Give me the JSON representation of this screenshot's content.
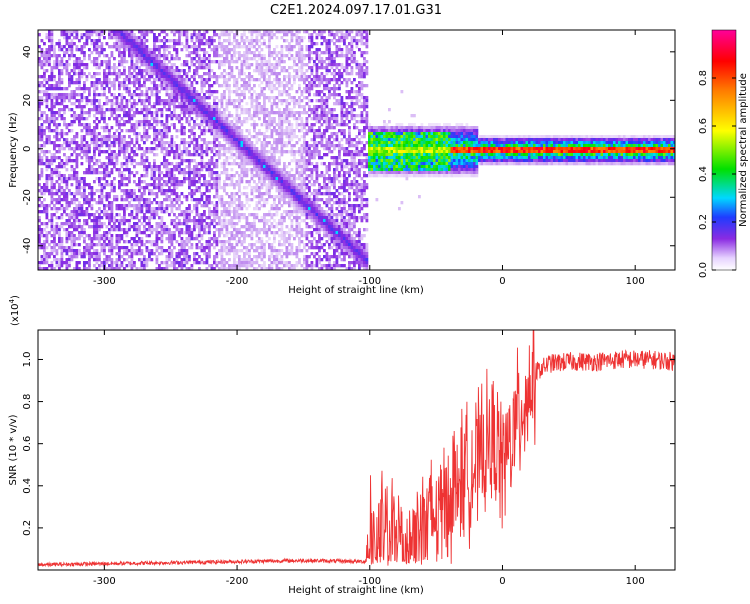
{
  "figure": {
    "title": "C2E1.2024.097.17.01.G31"
  },
  "chart_data": [
    {
      "type": "heatmap",
      "title": "",
      "xlabel": "Height of straight line (km)",
      "ylabel": "Frequency (Hz)",
      "xlim": [
        -350,
        130
      ],
      "ylim": [
        -50,
        49
      ],
      "xticks": [
        -300,
        -200,
        -100,
        0,
        100
      ],
      "yticks": [
        -40,
        -20,
        0,
        20,
        40
      ],
      "colorbar": {
        "label": "Normalized spectral amplitude",
        "range": [
          0,
          1
        ],
        "ticks": [
          0.0,
          0.2,
          0.4,
          0.6,
          0.8
        ],
        "tick_labels": [
          "0.0",
          "0.2",
          "0.4",
          "0.6",
          "0.8"
        ],
        "colormap": [
          "#ffffff",
          "#8a2be2",
          "#1f3cff",
          "#00d8ff",
          "#00e000",
          "#ffff00",
          "#ff7a00",
          "#ff0000",
          "#ff0099"
        ]
      },
      "features": {
        "noise_region_x": [
          -350,
          -103
        ],
        "diagonal_feature": {
          "from": [
            -290,
            49
          ],
          "to": [
            -110,
            -42
          ]
        },
        "carrier_line": {
          "x": [
            -110,
            130
          ],
          "frequency_hz": 0
        }
      }
    },
    {
      "type": "line",
      "title": "",
      "xlabel": "Height of straight line (km)",
      "ylabel": "SNR (10 * v/v)",
      "y_scale_label": "(x10",
      "y_scale_exp": "4",
      "xlim": [
        -350,
        130
      ],
      "ylim": [
        0,
        1.14
      ],
      "xticks": [
        -300,
        -200,
        -100,
        0,
        100
      ],
      "yticks": [
        0.2,
        0.4,
        0.6,
        0.8,
        1.0
      ],
      "ytick_labels": [
        "0.2",
        "0.4",
        "0.6",
        "0.8",
        "1.0"
      ],
      "series": [
        {
          "color": "#ee3333",
          "x": [
            -350,
            -250,
            -150,
            -103,
            -100,
            -80,
            -60,
            -45,
            -30,
            -20,
            -10,
            -5,
            0,
            5,
            15,
            25,
            35,
            50,
            70,
            90,
            110,
            130
          ],
          "values": [
            0.025,
            0.035,
            0.045,
            0.04,
            0.13,
            0.15,
            0.2,
            0.3,
            0.45,
            0.5,
            0.6,
            0.6,
            0.5,
            0.58,
            0.78,
            0.94,
            0.98,
            0.99,
            0.99,
            1.0,
            1.0,
            0.99
          ]
        }
      ]
    }
  ]
}
